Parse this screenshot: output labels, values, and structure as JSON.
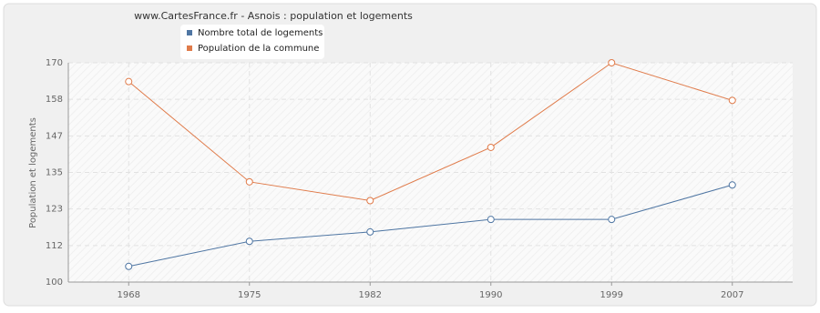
{
  "chart_data": {
    "type": "line",
    "title": "www.CartesFrance.fr - Asnois : population et logements",
    "y_label": "Population et logements",
    "categories": [
      "1968",
      "1975",
      "1982",
      "1990",
      "1999",
      "2007"
    ],
    "series": [
      {
        "name": "Nombre total de logements",
        "color": "#4f76a3",
        "values": [
          105,
          113,
          116,
          120,
          120,
          131
        ]
      },
      {
        "name": "Population de la commune",
        "color": "#e07b4a",
        "values": [
          164,
          132,
          126,
          143,
          170,
          158
        ]
      }
    ],
    "ylim": [
      100,
      170
    ],
    "yticks": [
      100,
      {
        "value": 111.67,
        "label": "112"
      },
      {
        "value": 123.33,
        "label": "123"
      },
      135,
      {
        "value": 146.67,
        "label": "147"
      },
      {
        "value": 158.33,
        "label": "158"
      },
      170
    ],
    "grid": true
  }
}
